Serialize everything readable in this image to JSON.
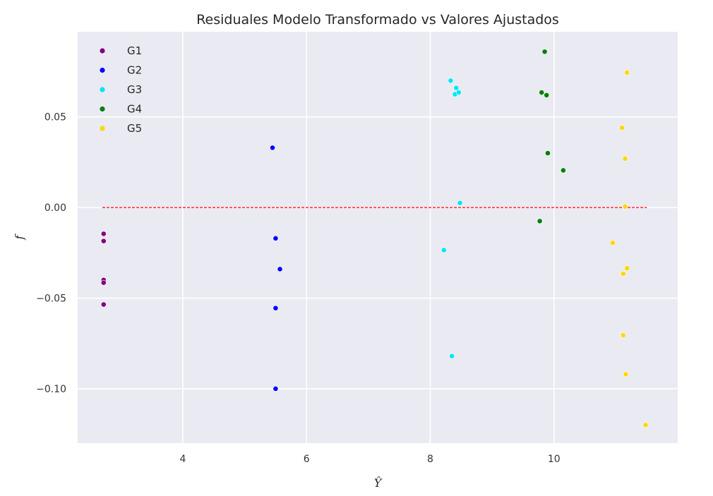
{
  "chart_data": {
    "type": "scatter",
    "title": "Residuales Modelo Transformado vs Valores Ajustados",
    "xlabel": "Ŷ",
    "ylabel": "f",
    "xlim": [
      2.3,
      12.0
    ],
    "ylim": [
      -0.13,
      0.097
    ],
    "xticks": [
      4,
      6,
      8,
      10
    ],
    "yticks": [
      0.05,
      0.0,
      -0.05,
      -0.1
    ],
    "ytick_labels": [
      "0.05",
      "0.00",
      "−0.05",
      "−0.10"
    ],
    "grid": true,
    "legend_position": "top-left",
    "reference_line": {
      "y": 0,
      "x_from": 2.7,
      "x_to": 11.5,
      "color": "#ff0000",
      "style": "dashed"
    },
    "series": [
      {
        "name": "G1",
        "color": "#800080",
        "points": [
          [
            2.72,
            -0.0145
          ],
          [
            2.72,
            -0.0185
          ],
          [
            2.72,
            -0.04
          ],
          [
            2.72,
            -0.0415
          ],
          [
            2.72,
            -0.0535
          ]
        ]
      },
      {
        "name": "G2",
        "color": "#0000ff",
        "points": [
          [
            5.45,
            0.033
          ],
          [
            5.5,
            -0.017
          ],
          [
            5.57,
            -0.034
          ],
          [
            5.5,
            -0.0555
          ],
          [
            5.5,
            -0.1
          ]
        ]
      },
      {
        "name": "G3",
        "color": "#00e5ff",
        "points": [
          [
            8.33,
            0.07
          ],
          [
            8.42,
            0.066
          ],
          [
            8.4,
            0.0625
          ],
          [
            8.46,
            0.0635
          ],
          [
            8.48,
            0.0025
          ],
          [
            8.22,
            -0.0235
          ],
          [
            8.35,
            -0.082
          ]
        ]
      },
      {
        "name": "G4",
        "color": "#008000",
        "points": [
          [
            9.85,
            0.086
          ],
          [
            9.8,
            0.0635
          ],
          [
            9.88,
            0.062
          ],
          [
            9.9,
            0.03
          ],
          [
            10.15,
            0.0205
          ],
          [
            9.77,
            -0.0075
          ]
        ]
      },
      {
        "name": "G5",
        "color": "#ffd700",
        "points": [
          [
            11.18,
            0.0745
          ],
          [
            11.1,
            0.044
          ],
          [
            11.15,
            0.027
          ],
          [
            11.15,
            0.0005
          ],
          [
            10.95,
            -0.0195
          ],
          [
            11.18,
            -0.0335
          ],
          [
            11.12,
            -0.0365
          ],
          [
            11.12,
            -0.0705
          ],
          [
            11.16,
            -0.092
          ],
          [
            11.48,
            -0.12
          ]
        ]
      }
    ]
  }
}
